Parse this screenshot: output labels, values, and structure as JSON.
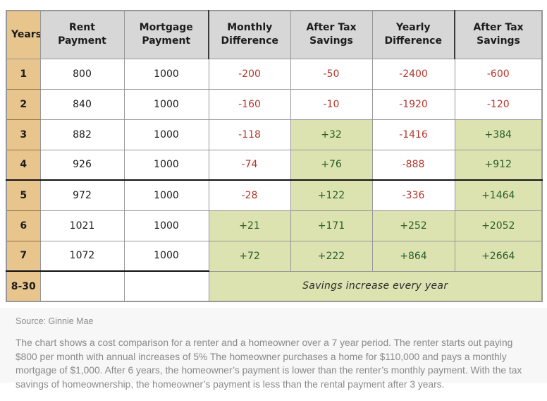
{
  "colors": {
    "years_column_bg": "#e9c58e",
    "header_bg": "#d7d7d7",
    "positive_cell_bg": "#dde3b0",
    "negative_text": "#b5362d",
    "positive_text": "#275e27"
  },
  "chart_data": {
    "type": "table",
    "title": "Rent vs. mortgage cost comparison",
    "columns": [
      "Years",
      "Rent Payment",
      "Mortgage Payment",
      "Monthly Difference",
      "After Tax Savings",
      "Yearly Difference",
      "After Tax Savings"
    ],
    "rows": [
      {
        "year": "1",
        "values": [
          "800",
          "1000",
          "-200",
          "-50",
          "-2400",
          "-600"
        ]
      },
      {
        "year": "2",
        "values": [
          "840",
          "1000",
          "-160",
          "-10",
          "-1920",
          "-120"
        ]
      },
      {
        "year": "3",
        "values": [
          "882",
          "1000",
          "-118",
          "+32",
          "-1416",
          "+384"
        ]
      },
      {
        "year": "4",
        "values": [
          "926",
          "1000",
          "-74",
          "+76",
          "-888",
          "+912"
        ]
      },
      {
        "year": "5",
        "values": [
          "972",
          "1000",
          "-28",
          "+122",
          "-336",
          "+1464"
        ]
      },
      {
        "year": "6",
        "values": [
          "1021",
          "1000",
          "+21",
          "+171",
          "+252",
          "+2052"
        ]
      },
      {
        "year": "7",
        "values": [
          "1072",
          "1000",
          "+72",
          "+222",
          "+864",
          "+2664"
        ]
      },
      {
        "year": "8-30",
        "values": [
          "",
          ""
        ],
        "merged": "Savings increase every year"
      }
    ]
  },
  "footer": {
    "source": "Source: Ginnie Mae",
    "description": "The chart shows a cost comparison for a renter and a homeowner over a 7 year period. The renter starts out paying $800 per month with annual increases of 5% The homeowner purchases a home for $110,000 and pays a monthly mortgage of $1,000. After 6 years, the homeowner’s payment is lower than the renter’s monthly payment. With the tax savings of homeownership, the homeowner’s payment is less than the rental payment after 3 years."
  }
}
